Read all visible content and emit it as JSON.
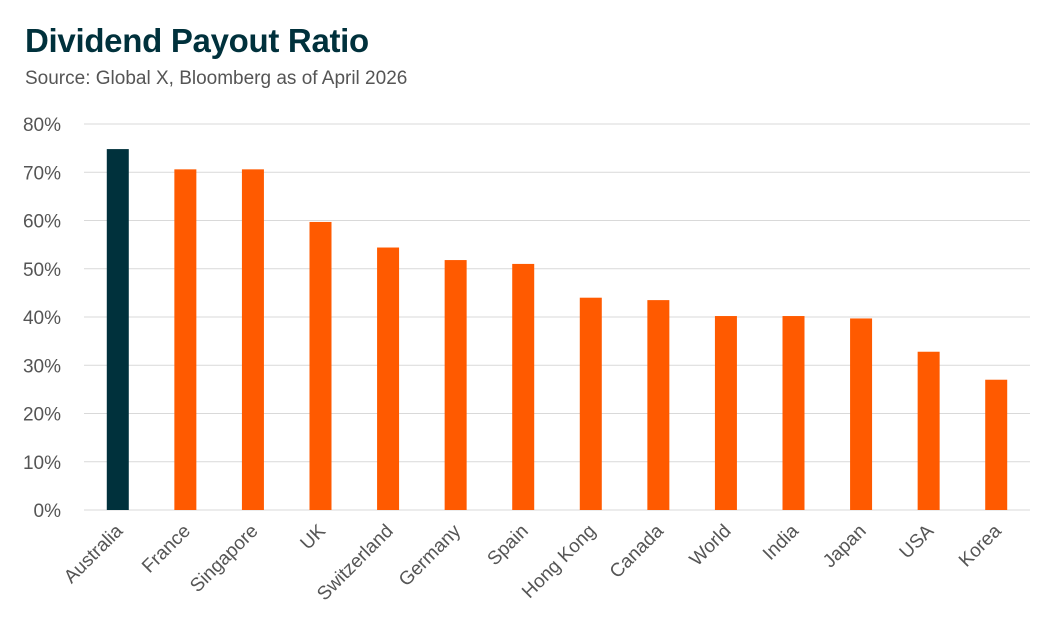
{
  "chart_data": {
    "type": "bar",
    "title": "Dividend Payout Ratio",
    "subtitle": "Source: Global X, Bloomberg as of April 2026",
    "categories": [
      "Australia",
      "France",
      "Singapore",
      "UK",
      "Switzerland",
      "Germany",
      "Spain",
      "Hong Kong",
      "Canada",
      "World",
      "India",
      "Japan",
      "USA",
      "Korea"
    ],
    "values": [
      74.8,
      70.6,
      70.6,
      59.7,
      54.4,
      51.8,
      51.0,
      44.0,
      43.5,
      40.2,
      40.2,
      39.7,
      32.8,
      27.0
    ],
    "ylim": [
      0,
      80
    ],
    "yticks": [
      "0%",
      "10%",
      "20%",
      "30%",
      "40%",
      "50%",
      "60%",
      "70%",
      "80%"
    ],
    "xlabel": "",
    "ylabel": "",
    "grid": true,
    "legend": "none",
    "colors": {
      "highlight": "#00313c",
      "default": "#ff5a00",
      "grid": "#d9d9d9",
      "text": "#555555"
    },
    "highlight_category": "Australia"
  }
}
